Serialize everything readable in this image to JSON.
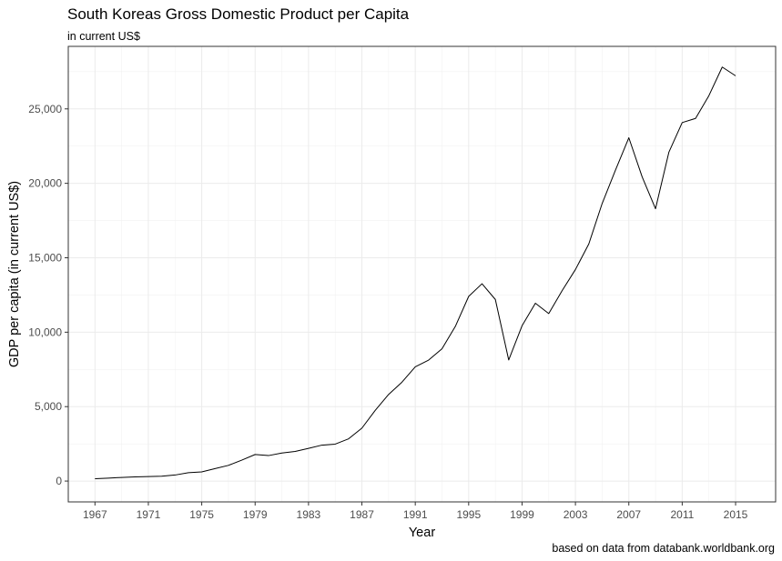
{
  "chart_data": {
    "type": "line",
    "title": "South Koreas Gross Domestic Product per Capita",
    "subtitle": "in current US$",
    "caption": "based on data from databank.worldbank.org",
    "xlabel": "Year",
    "ylabel": "GDP per capita (in current US$)",
    "xlim": [
      1965,
      2018
    ],
    "ylim": [
      -1400,
      29200
    ],
    "x_ticks": [
      1967,
      1971,
      1975,
      1979,
      1983,
      1987,
      1991,
      1995,
      1999,
      2003,
      2007,
      2011,
      2015
    ],
    "y_ticks": [
      0,
      5000,
      10000,
      15000,
      20000,
      25000
    ],
    "y_tick_labels": [
      "0",
      "5,000",
      "10,000",
      "15,000",
      "20,000",
      "25,000"
    ],
    "grid": true,
    "series": [
      {
        "color": "#000000",
        "x": [
          1967,
          1968,
          1969,
          1970,
          1971,
          1972,
          1973,
          1974,
          1975,
          1976,
          1977,
          1978,
          1979,
          1980,
          1981,
          1982,
          1983,
          1984,
          1985,
          1986,
          1987,
          1988,
          1989,
          1990,
          1991,
          1992,
          1993,
          1994,
          1995,
          1996,
          1997,
          1998,
          1999,
          2000,
          2001,
          2002,
          2003,
          2004,
          2005,
          2006,
          2007,
          2008,
          2009,
          2010,
          2011,
          2012,
          2013,
          2014,
          2015
        ],
        "y": [
          161,
          198,
          243,
          279,
          301,
          324,
          406,
          563,
          617,
          834,
          1055,
          1405,
          1783,
          1711,
          1883,
          1992,
          2198,
          2413,
          2482,
          2835,
          3555,
          4749,
          5817,
          6642,
          7674,
          8126,
          8885,
          10385,
          12404,
          13255,
          12197,
          8135,
          10432,
          11948,
          11253,
          12783,
          14209,
          15922,
          18640,
          20888,
          23061,
          20431,
          18292,
          22087,
          24080,
          24359,
          25890,
          27811,
          27222
        ]
      }
    ]
  }
}
